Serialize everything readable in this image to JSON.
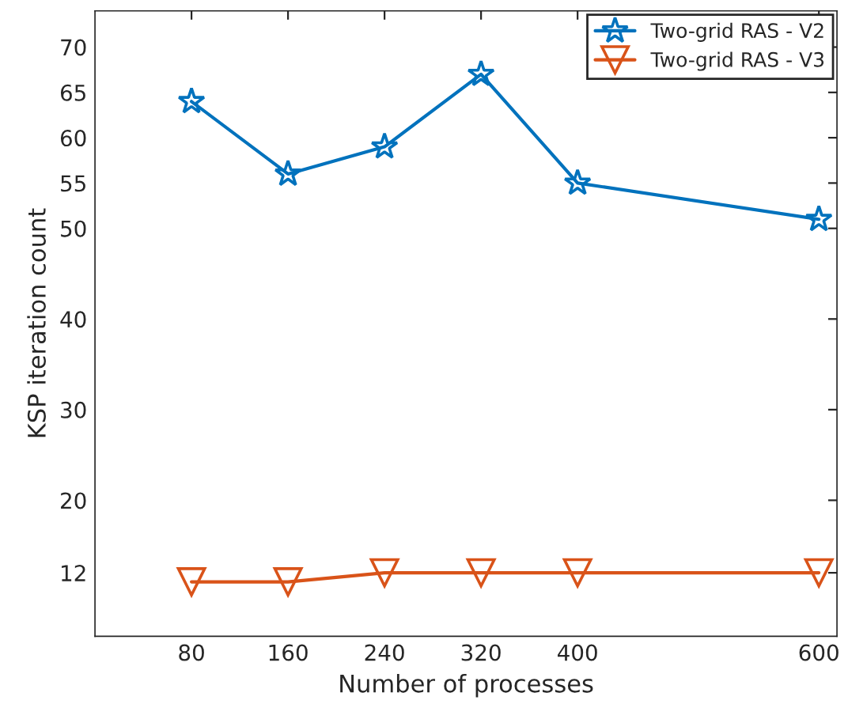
{
  "chart_data": {
    "type": "line",
    "xlabel": "Number of processes",
    "ylabel": "KSP iteration count",
    "x": [
      80,
      160,
      240,
      320,
      400,
      600
    ],
    "series": [
      {
        "name": "Two-grid RAS - V2",
        "color": "#0072bd",
        "marker": "star",
        "values": [
          64,
          56,
          59,
          67,
          55,
          51
        ]
      },
      {
        "name": "Two-grid RAS - V3",
        "color": "#d95319",
        "marker": "triangle_down",
        "values": [
          11,
          11,
          12,
          12,
          12,
          12
        ]
      }
    ],
    "xlim": [
      0,
      615
    ],
    "xticks": [
      80,
      160,
      240,
      320,
      400,
      600
    ],
    "ylim": [
      5,
      74
    ],
    "yticks": [
      12,
      20,
      30,
      40,
      50,
      55,
      60,
      65,
      70
    ],
    "legend": "top right",
    "grid": false,
    "line_style": "solid"
  }
}
